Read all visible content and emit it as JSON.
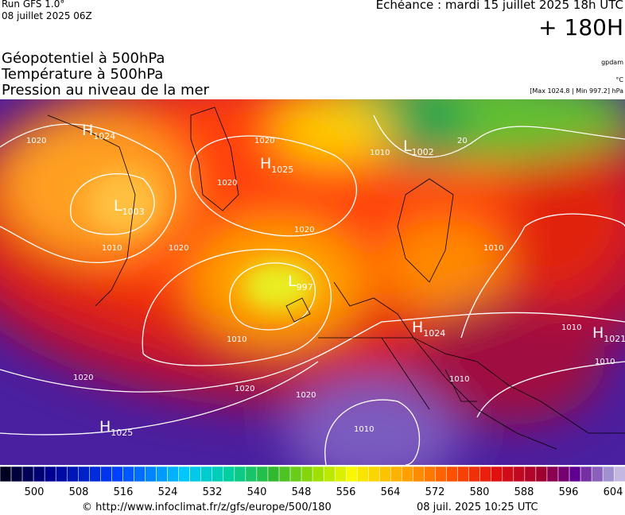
{
  "header": {
    "run": "Run GFS 1.0°",
    "run_date": "08 juillet 2025 06Z",
    "valid": "Echéance : mardi 15 juillet 2025 18h UTC",
    "lead": "+ 180H",
    "titles": [
      "Géopotentiel à 500hPa",
      "Température à 500hPa",
      "Pression au niveau de la mer"
    ],
    "units": [
      "gpdam",
      "°C",
      "[Max 1024.8 | Min 997.2] hPa"
    ]
  },
  "centers": [
    {
      "kind": "H",
      "value": "1024"
    },
    {
      "kind": "L",
      "value": "1003"
    },
    {
      "kind": "H",
      "value": "1025"
    },
    {
      "kind": "L",
      "value": "1002"
    },
    {
      "kind": "L",
      "value": "997"
    },
    {
      "kind": "H",
      "value": "1024"
    },
    {
      "kind": "H",
      "value": "1021"
    },
    {
      "kind": "H",
      "value": "1025"
    }
  ],
  "isobar_labels": [
    "1020",
    "1020",
    "1020",
    "1020",
    "1010",
    "1010",
    "1020",
    "1010",
    "1020",
    "1020",
    "1020",
    "1010",
    "1010",
    "1010",
    "1010",
    "1010",
    "20"
  ],
  "legend": {
    "labels": [
      "500",
      "508",
      "516",
      "524",
      "532",
      "540",
      "548",
      "556",
      "564",
      "572",
      "580",
      "588",
      "596",
      "604"
    ]
  },
  "footer": {
    "source": "© http://www.infoclimat.fr/z/gfs/europe/500/180",
    "generated": "08 juil. 2025 10:25 UTC"
  }
}
